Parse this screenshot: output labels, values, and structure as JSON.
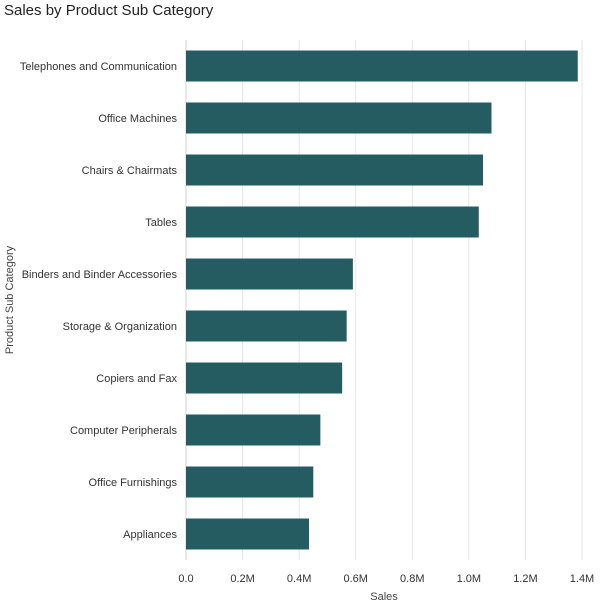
{
  "chart_data": {
    "type": "bar",
    "orientation": "horizontal",
    "title": "Sales by Product Sub Category",
    "xlabel": "Sales",
    "ylabel": "Product Sub Category",
    "categories": [
      "Telephones and Communication",
      "Office Machines",
      "Chairs & Chairmats",
      "Tables",
      "Binders and Binder Accessories",
      "Storage & Organization",
      "Copiers and Fax",
      "Computer Peripherals",
      "Office Furnishings",
      "Appliances"
    ],
    "values": [
      1385000,
      1080000,
      1050000,
      1035000,
      590000,
      568000,
      552000,
      475000,
      450000,
      435000
    ],
    "xlim": [
      0,
      1400000
    ],
    "xticks": [
      0,
      200000,
      400000,
      600000,
      800000,
      1000000,
      1200000,
      1400000
    ],
    "xtick_labels": [
      "0.0",
      "0.2M",
      "0.4M",
      "0.6M",
      "0.8M",
      "1.0M",
      "1.2M",
      "1.4M"
    ],
    "grid": true,
    "bar_color": "#245c62",
    "grid_color": "#e6e6e6"
  }
}
